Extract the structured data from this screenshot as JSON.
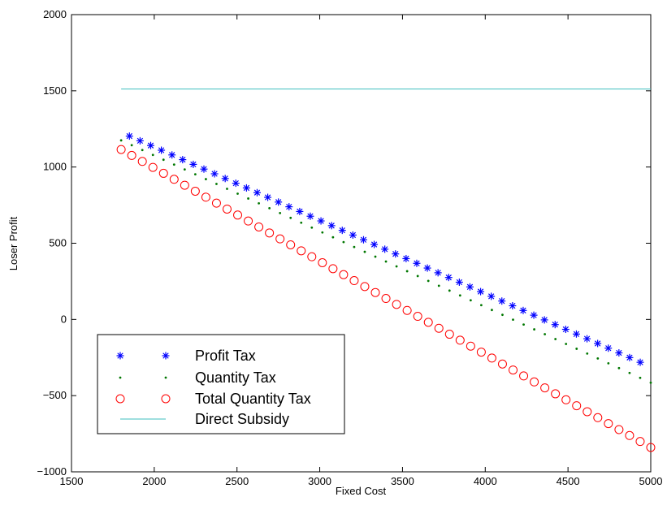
{
  "chart_data": {
    "type": "scatter",
    "title": "",
    "xlabel": "Fixed Cost",
    "ylabel": "Loser Profit",
    "xlim": [
      1500,
      5000
    ],
    "ylim": [
      -1000,
      2000
    ],
    "xticks": [
      1500,
      2000,
      2500,
      3000,
      3500,
      4000,
      4500,
      5000
    ],
    "yticks": [
      -1000,
      -500,
      0,
      500,
      1000,
      1500,
      2000
    ],
    "xtick_labels": [
      "1500",
      "2000",
      "2500",
      "3000",
      "3500",
      "4000",
      "4500",
      "5000"
    ],
    "ytick_labels": [
      "−1000",
      "−500",
      "0",
      "500",
      "1000",
      "1500",
      "2000"
    ],
    "grid": false,
    "legend_position": "bottom-left",
    "series": [
      {
        "name": "Profit Tax",
        "marker": "asterisk",
        "color": "#0000ff",
        "x_start": 1850,
        "x_end": 5000,
        "x_step": 64.3,
        "y_start": 1203,
        "y_end": -312
      },
      {
        "name": "Quantity Tax",
        "marker": "dot",
        "color": "#007700",
        "x_start": 1800,
        "x_end": 5000,
        "x_step": 64,
        "y_start": 1175,
        "y_end": -415
      },
      {
        "name": "Total Quantity Tax",
        "marker": "circle",
        "color": "#ff0000",
        "x_start": 1800,
        "x_end": 5000,
        "x_step": 64,
        "y_start": 1115,
        "y_end": -840
      },
      {
        "name": "Direct Subsidy",
        "marker": "line",
        "color": "#3fbfbf",
        "x_start": 1800,
        "x_end": 5000,
        "y_start": 1512,
        "y_end": 1512
      }
    ]
  }
}
